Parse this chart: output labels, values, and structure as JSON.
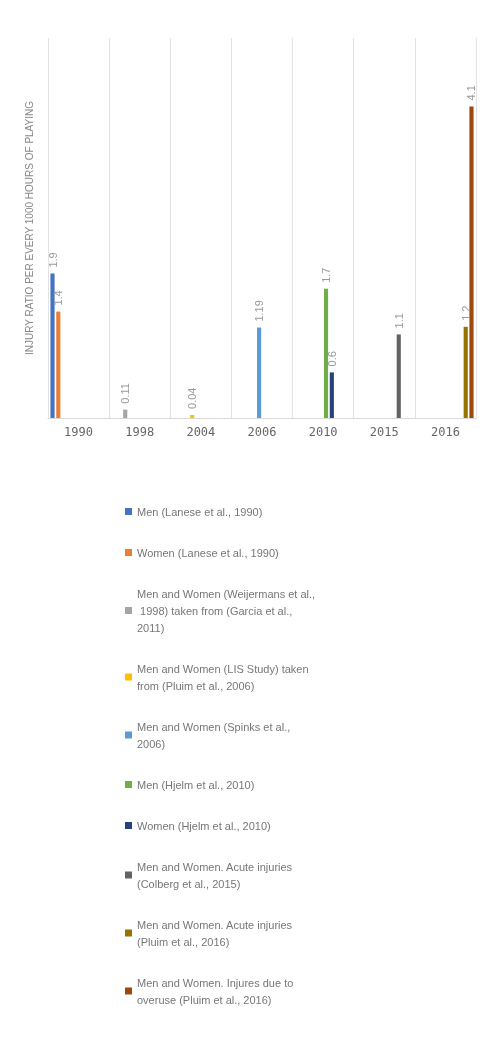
{
  "chart_data": {
    "type": "bar",
    "ylabel": "INJURY RATIO PER EVERY 1000 HOURS OF PLAYING",
    "categories": [
      "1990",
      "1998",
      "2004",
      "2006",
      "2010",
      "2015",
      "2016"
    ],
    "series": [
      {
        "name": "Men (Lanese et al., 1990)",
        "color": "#4472c4",
        "values": [
          1.9,
          null,
          null,
          null,
          null,
          null,
          null
        ]
      },
      {
        "name": "Women (Lanese et al., 1990)",
        "color": "#ed7d31",
        "values": [
          1.4,
          null,
          null,
          null,
          null,
          null,
          null
        ]
      },
      {
        "name": "Men and Women (Weijermans et al., 1998) taken from (Garcia et al., 2011)",
        "color": "#a5a5a5",
        "values": [
          null,
          0.11,
          null,
          null,
          null,
          null,
          null
        ]
      },
      {
        "name": "Men and Women (LIS Study) taken from (Pluim et al., 2006)",
        "color": "#ffc000",
        "values": [
          null,
          null,
          0.04,
          null,
          null,
          null,
          null
        ]
      },
      {
        "name": "Men and Women (Spinks et al., 2006)",
        "color": "#5b9bd5",
        "values": [
          null,
          null,
          null,
          1.19,
          null,
          null,
          null
        ]
      },
      {
        "name": "Men (Hjelm et al., 2010)",
        "color": "#70ad47",
        "values": [
          null,
          null,
          null,
          null,
          1.7,
          null,
          null
        ]
      },
      {
        "name": "Women (Hjelm et al., 2010)",
        "color": "#264478",
        "values": [
          null,
          null,
          null,
          null,
          0.6,
          null,
          null
        ]
      },
      {
        "name": "Men and Women. Acute injuries (Colberg et al., 2015)",
        "color": "#636363",
        "values": [
          null,
          null,
          null,
          null,
          null,
          1.1,
          null
        ]
      },
      {
        "name": "Men and Women. Acute injuries (Pluim et al., 2016)",
        "color": "#997300",
        "values": [
          null,
          null,
          null,
          null,
          null,
          null,
          1.2
        ]
      },
      {
        "name": "Men and Women. Injures due to overuse (Pluim et al., 2016)",
        "color": "#9e480e",
        "values": [
          null,
          null,
          null,
          null,
          null,
          null,
          4.1
        ]
      }
    ],
    "data_labels": true,
    "grid": "x",
    "legend": "bottom"
  }
}
